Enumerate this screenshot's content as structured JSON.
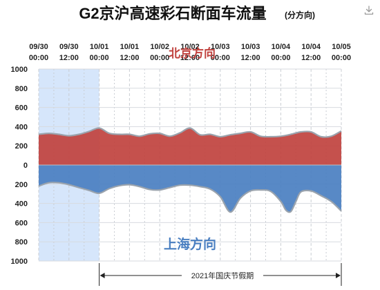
{
  "chart_data": {
    "type": "area",
    "title": "G2京沪高速彩石断面车流量",
    "subtitle": "(分方向)",
    "x_ticks": [
      {
        "date": "09/30",
        "time": "00:00",
        "h": 0
      },
      {
        "date": "09/30",
        "time": "12:00",
        "h": 12
      },
      {
        "date": "10/01",
        "time": "00:00",
        "h": 24
      },
      {
        "date": "10/01",
        "time": "12:00",
        "h": 36
      },
      {
        "date": "10/02",
        "time": "00:00",
        "h": 48
      },
      {
        "date": "10/02",
        "time": "12:00",
        "h": 60
      },
      {
        "date": "10/03",
        "time": "00:00",
        "h": 72
      },
      {
        "date": "10/03",
        "time": "12:00",
        "h": 84
      },
      {
        "date": "10/04",
        "time": "00:00",
        "h": 96
      },
      {
        "date": "10/04",
        "time": "12:00",
        "h": 108
      },
      {
        "date": "10/05",
        "time": "00:00",
        "h": 120
      }
    ],
    "x_range_hours": [
      0,
      120
    ],
    "y_ticks": [
      1000,
      800,
      600,
      400,
      200,
      0,
      200,
      400,
      600,
      800,
      1000
    ],
    "ylim": [
      -1000,
      1000
    ],
    "series": [
      {
        "name": "北京方向",
        "color": "#c0423e",
        "x": [
          0,
          4,
          8,
          12,
          16,
          20,
          24,
          28,
          32,
          36,
          40,
          44,
          48,
          52,
          56,
          60,
          64,
          68,
          72,
          76,
          80,
          84,
          88,
          92,
          96,
          100,
          104,
          108,
          112,
          116,
          120
        ],
        "values": [
          320,
          330,
          320,
          305,
          320,
          350,
          385,
          330,
          320,
          320,
          300,
          325,
          330,
          300,
          335,
          385,
          315,
          320,
          295,
          315,
          330,
          345,
          300,
          295,
          300,
          320,
          345,
          345,
          295,
          300,
          355
        ]
      },
      {
        "name": "上海方向",
        "color": "#4a7fc1",
        "x": [
          0,
          4,
          8,
          12,
          16,
          20,
          24,
          28,
          32,
          36,
          40,
          44,
          48,
          52,
          56,
          60,
          64,
          68,
          72,
          76,
          80,
          84,
          88,
          92,
          96,
          98,
          100,
          102,
          104,
          108,
          112,
          116,
          120
        ],
        "values": [
          -220,
          -185,
          -185,
          -205,
          -235,
          -265,
          -295,
          -245,
          -215,
          -205,
          -225,
          -255,
          -260,
          -235,
          -210,
          -210,
          -225,
          -250,
          -330,
          -490,
          -345,
          -270,
          -260,
          -275,
          -380,
          -470,
          -485,
          -380,
          -280,
          -270,
          -320,
          -380,
          -480
        ]
      }
    ],
    "highlight": {
      "from_h": 0,
      "to_h": 24,
      "color": "#d6e6fb"
    },
    "annotation": {
      "label": "2021年国庆节假期",
      "from_h": 24,
      "to_h": 120
    },
    "grid": true
  }
}
